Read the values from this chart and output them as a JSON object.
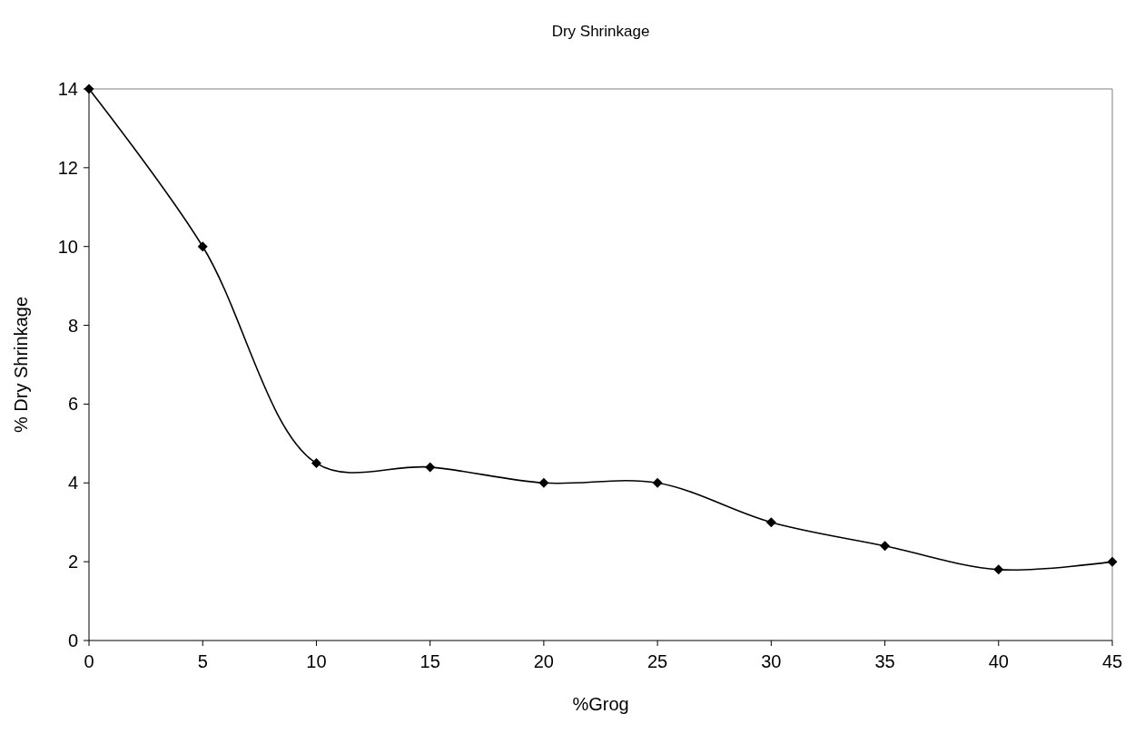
{
  "chart_data": {
    "type": "line",
    "title": "Dry Shrinkage",
    "xlabel": "%Grog",
    "ylabel": "% Dry Shrinkage",
    "x": [
      0,
      5,
      10,
      15,
      20,
      25,
      30,
      35,
      40,
      45
    ],
    "series": [
      {
        "color": "#000000",
        "values": [
          14,
          10,
          4.5,
          4.4,
          4,
          4,
          3,
          2.4,
          1.8,
          2
        ]
      }
    ],
    "xlim": [
      0,
      45
    ],
    "xticks": [
      0,
      5,
      10,
      15,
      20,
      25,
      30,
      35,
      40,
      45
    ],
    "ylim": [
      0,
      14
    ],
    "yticks": [
      0,
      2,
      4,
      6,
      8,
      10,
      12,
      14
    ],
    "grid": false,
    "marker": "diamond",
    "line_style": "solid"
  }
}
